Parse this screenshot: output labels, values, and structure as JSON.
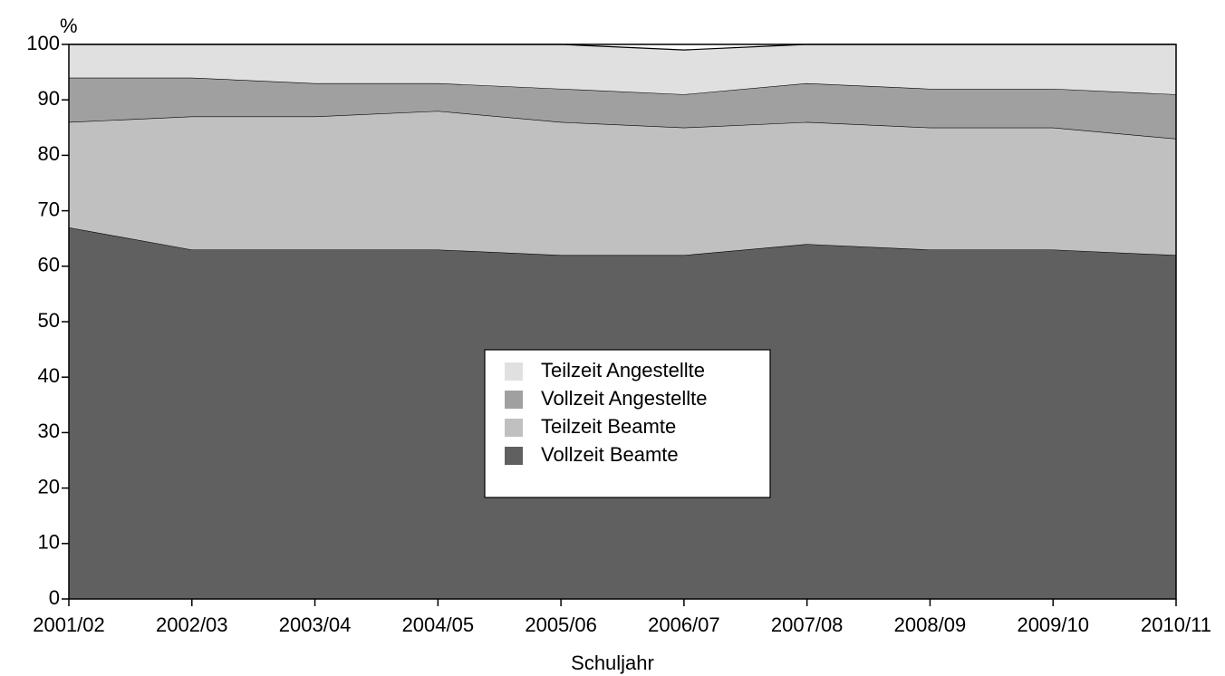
{
  "chart_data": {
    "type": "stacked-area",
    "ylabel": "%",
    "xlabel": "Schuljahr",
    "categories": [
      "2001/02",
      "2002/03",
      "2003/04",
      "2004/05",
      "2005/06",
      "2006/07",
      "2007/08",
      "2008/09",
      "2009/10",
      "2010/11"
    ],
    "series": [
      {
        "name": "Vollzeit Beamte",
        "color": "#606060",
        "values": [
          67,
          63,
          63,
          63,
          62,
          62,
          64,
          63,
          63,
          62
        ]
      },
      {
        "name": "Teilzeit Beamte",
        "color": "#c0c0c0",
        "values": [
          19,
          24,
          24,
          25,
          24,
          23,
          22,
          22,
          22,
          21
        ]
      },
      {
        "name": "Vollzeit Angestellte",
        "color": "#a0a0a0",
        "values": [
          8,
          7,
          6,
          5,
          6,
          6,
          7,
          7,
          7,
          8
        ]
      },
      {
        "name": "Teilzeit Angestellte",
        "color": "#e0e0e0",
        "values": [
          6,
          6,
          7,
          7,
          8,
          8,
          7,
          8,
          8,
          9
        ]
      }
    ],
    "ylim": [
      0,
      100
    ],
    "yticks": [
      0,
      10,
      20,
      30,
      40,
      50,
      60,
      70,
      80,
      90,
      100
    ],
    "legend": "center"
  }
}
